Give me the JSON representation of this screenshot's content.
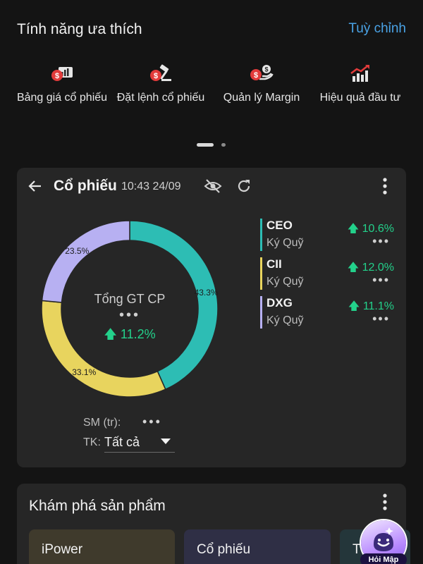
{
  "favorites": {
    "title": "Tính năng ưa thích",
    "customize_label": "Tuỳ chỉnh",
    "items": [
      {
        "label": "Bảng giá cổ phiếu",
        "icon": "price-board-icon"
      },
      {
        "label": "Đặt lệnh cổ phiếu",
        "icon": "order-hammer-icon"
      },
      {
        "label": "Quản lý Margin",
        "icon": "margin-hand-coin-icon"
      },
      {
        "label": "Hiệu quả đầu tư",
        "icon": "growth-chart-icon"
      }
    ]
  },
  "portfolio": {
    "title": "Cổ phiếu",
    "timestamp": "10:43 24/09",
    "center_label": "Tổng GT CP",
    "center_value_masked": "•••",
    "center_change": "11.2%",
    "sm_label": "SM (tr):",
    "sm_value_masked": "•••",
    "tk_label": "TK:",
    "tk_value": "Tất cả"
  },
  "chart_data": {
    "type": "pie",
    "categories": [
      "CEO",
      "CII",
      "DXG"
    ],
    "values": [
      43.3,
      33.1,
      23.5
    ],
    "labels": [
      "43.3%",
      "33.1%",
      "23.5%"
    ],
    "colors": [
      "#2dbdb4",
      "#e8d45e",
      "#b7b0f2"
    ],
    "legend": [
      {
        "code": "CEO",
        "type": "Ký Quỹ",
        "change": "10.6%",
        "value_masked": "•••",
        "color": "#2dbdb4"
      },
      {
        "code": "CII",
        "type": "Ký Quỹ",
        "change": "12.0%",
        "value_masked": "•••",
        "color": "#e8d45e"
      },
      {
        "code": "DXG",
        "type": "Ký Quỹ",
        "change": "11.1%",
        "value_masked": "•••",
        "color": "#b7b0f2"
      }
    ],
    "legend_placement": "right"
  },
  "explore": {
    "title": "Khám phá sản phẩm",
    "products": [
      {
        "label": "iPower"
      },
      {
        "label": "Cổ phiếu"
      },
      {
        "label": "T"
      }
    ]
  },
  "chat": {
    "label": "Hỏi Mập"
  },
  "colors": {
    "background": "#141414",
    "card": "#262626",
    "accent_link": "#4aa3e6",
    "positive": "#23d18b",
    "icon_red": "#e23b3b"
  }
}
